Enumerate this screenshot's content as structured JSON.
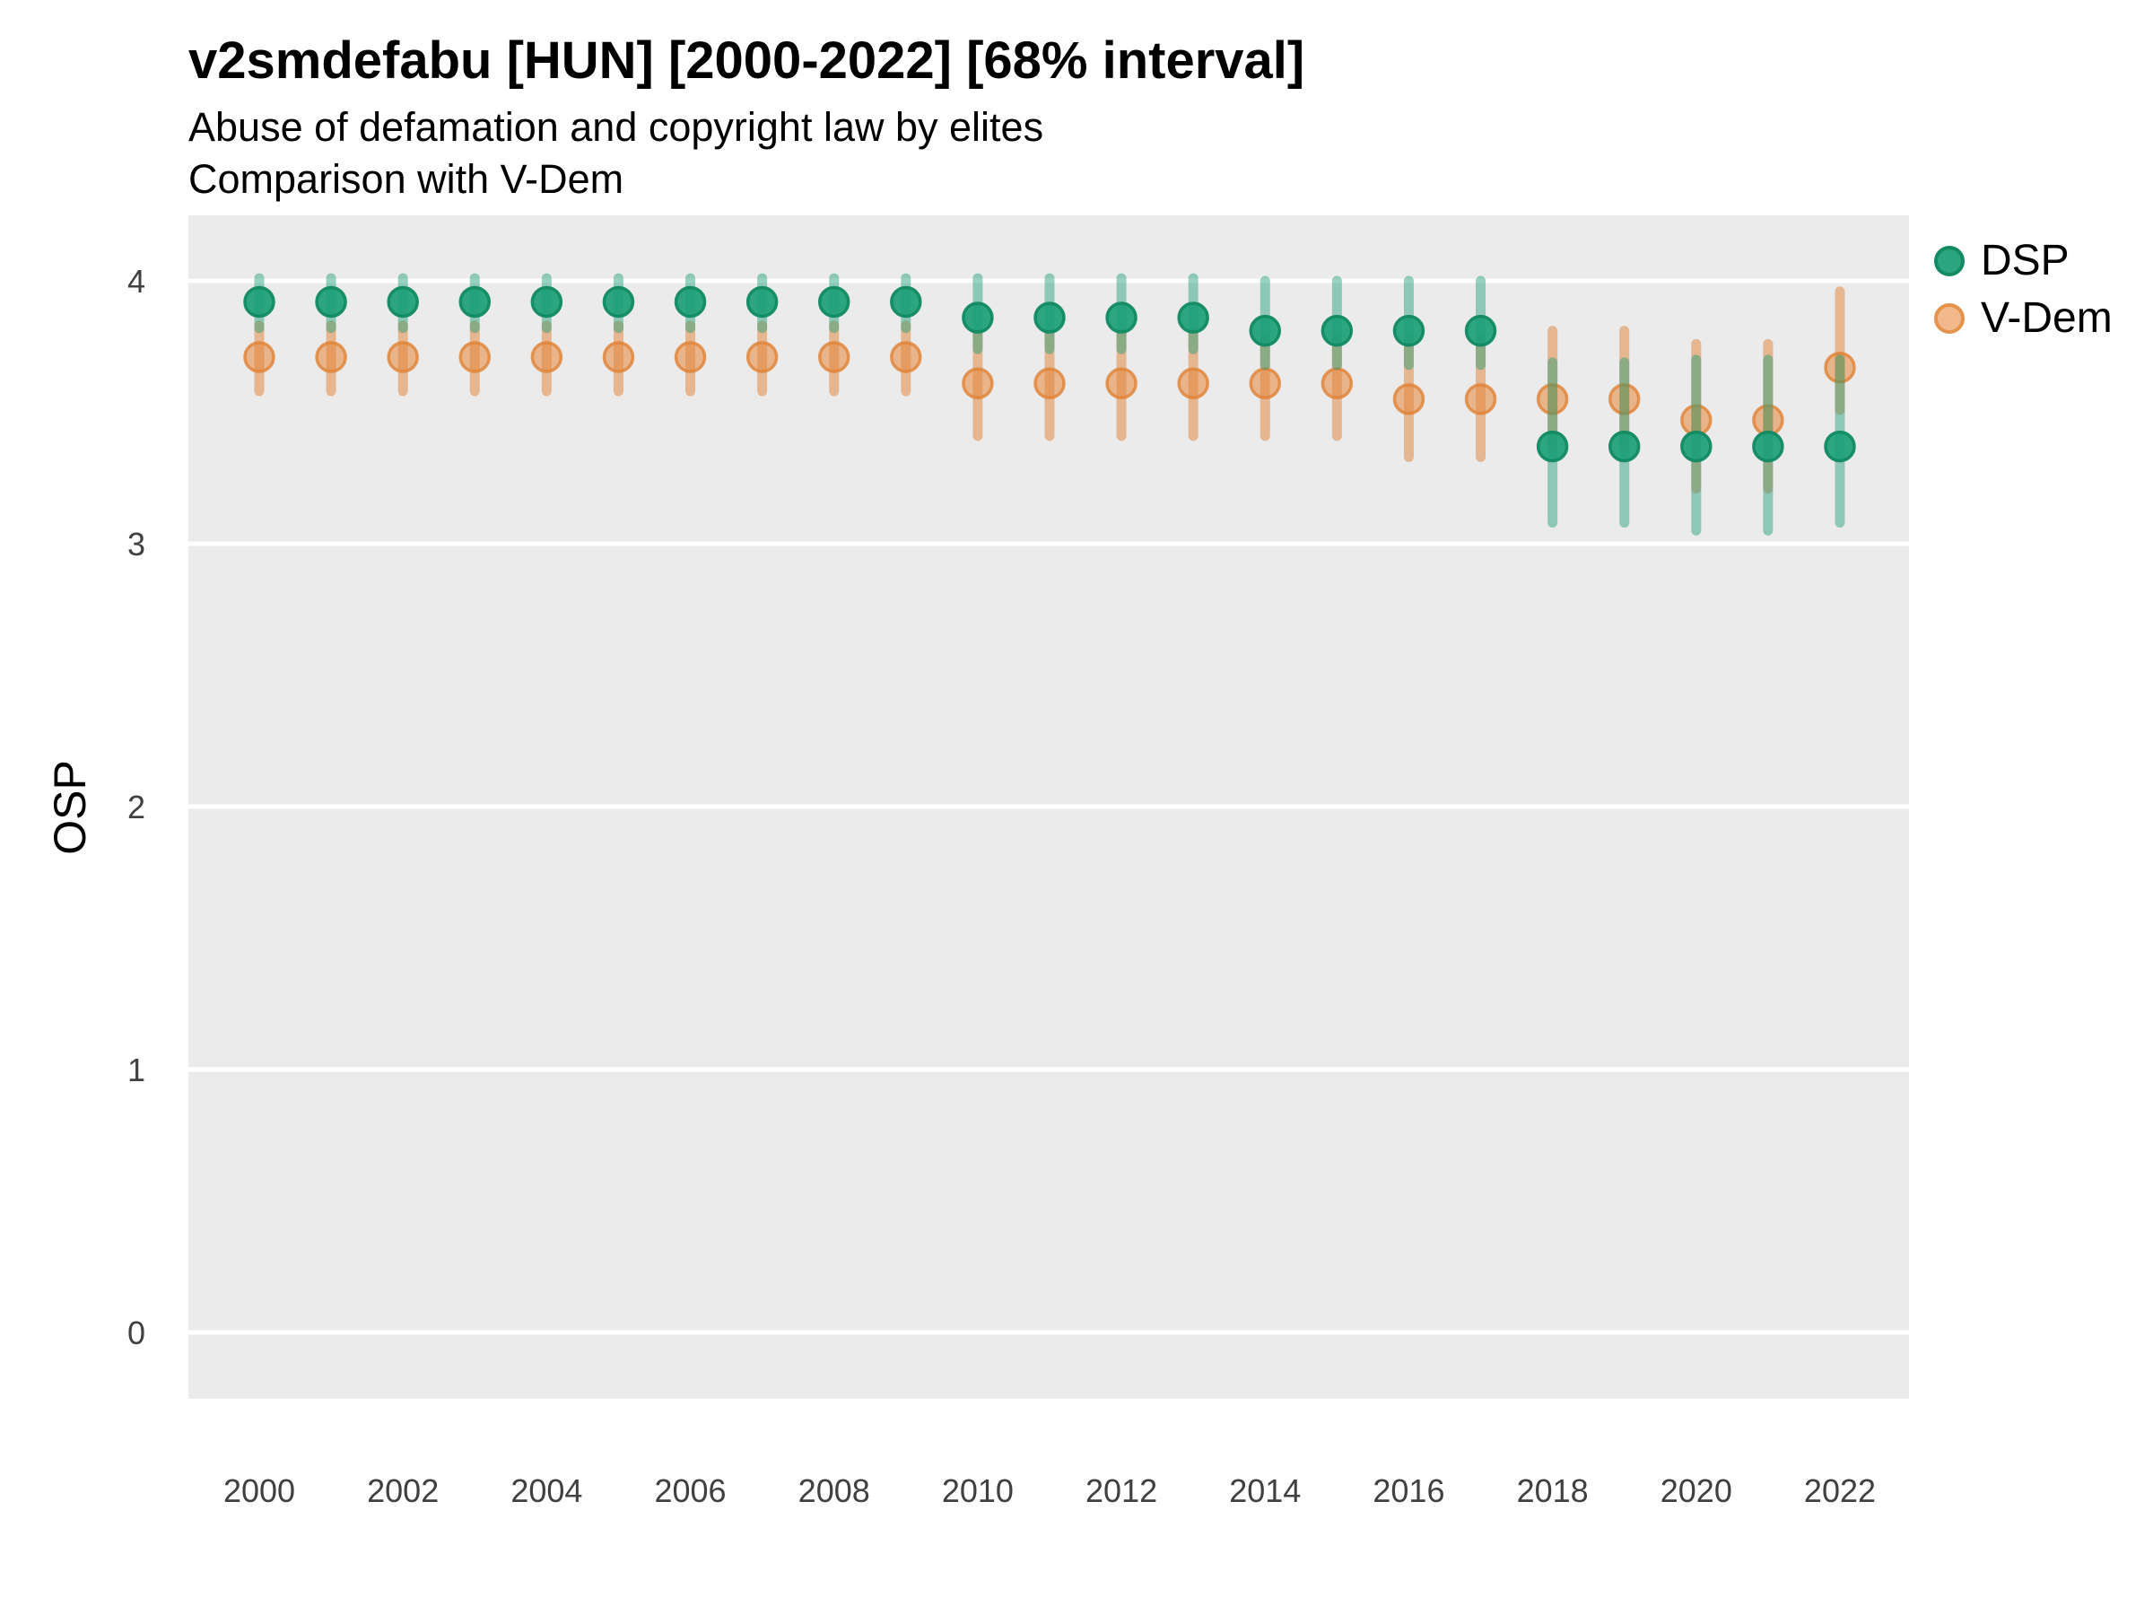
{
  "title": "v2smdefabu [HUN] [2000-2022] [68% interval]",
  "subtitle": "Abuse of defamation and copyright law by elites",
  "subtitle2": "Comparison with V-Dem",
  "y_axis": {
    "title": "OSP",
    "tick_labels": [
      "0",
      "1",
      "2",
      "3",
      "4"
    ],
    "tick_values": [
      0,
      1,
      2,
      3,
      4
    ]
  },
  "x_axis": {
    "tick_labels": [
      "2000",
      "2002",
      "2004",
      "2006",
      "2008",
      "2010",
      "2012",
      "2014",
      "2016",
      "2018",
      "2020",
      "2022"
    ],
    "tick_values": [
      2000,
      2002,
      2004,
      2006,
      2008,
      2010,
      2012,
      2014,
      2016,
      2018,
      2020,
      2022
    ]
  },
  "legend": {
    "items": [
      {
        "label": "DSP",
        "color": "#1B9E77"
      },
      {
        "label": "V-Dem",
        "color": "#E8873B"
      }
    ]
  },
  "colors": {
    "panel_background": "#EBEBEB",
    "gridline": "#FFFFFF",
    "tick_text": "#404040",
    "dsp_fill": "#1B9E77",
    "dsp_stroke": "#128A62",
    "dsp_line": "#1B9E77",
    "vdem_fill": "#E8873B",
    "vdem_stroke": "#E08234",
    "vdem_line": "#E08234"
  },
  "chart_data": {
    "type": "pointrange-scatter",
    "title": "v2smdefabu [HUN] [2000-2022] [68% interval]",
    "subtitle": "Abuse of defamation and copyright law by elites",
    "caption": "Comparison with V-Dem",
    "xlabel": "",
    "ylabel": "OSP",
    "ylim": [
      0,
      4
    ],
    "interval": "68%",
    "grid": "major-horizontal",
    "legend_position": "right-top",
    "x": [
      2000,
      2001,
      2002,
      2003,
      2004,
      2005,
      2006,
      2007,
      2008,
      2009,
      2010,
      2011,
      2012,
      2013,
      2014,
      2015,
      2016,
      2017,
      2018,
      2019,
      2020,
      2021,
      2022
    ],
    "series": [
      {
        "name": "V-Dem",
        "estimate": [
          3.71,
          3.71,
          3.71,
          3.71,
          3.71,
          3.71,
          3.71,
          3.71,
          3.71,
          3.71,
          3.61,
          3.61,
          3.61,
          3.61,
          3.61,
          3.61,
          3.55,
          3.55,
          3.55,
          3.55,
          3.47,
          3.47,
          3.67
        ],
        "lower": [
          3.58,
          3.58,
          3.58,
          3.58,
          3.58,
          3.58,
          3.58,
          3.58,
          3.58,
          3.58,
          3.41,
          3.41,
          3.41,
          3.41,
          3.41,
          3.41,
          3.33,
          3.33,
          3.37,
          3.37,
          3.21,
          3.21,
          3.51
        ],
        "upper": [
          3.83,
          3.83,
          3.83,
          3.83,
          3.83,
          3.83,
          3.83,
          3.83,
          3.83,
          3.83,
          3.8,
          3.8,
          3.8,
          3.8,
          3.78,
          3.78,
          3.78,
          3.78,
          3.81,
          3.81,
          3.76,
          3.76,
          3.96
        ]
      },
      {
        "name": "DSP",
        "estimate": [
          3.92,
          3.92,
          3.92,
          3.92,
          3.92,
          3.92,
          3.92,
          3.92,
          3.92,
          3.92,
          3.86,
          3.86,
          3.86,
          3.86,
          3.81,
          3.81,
          3.81,
          3.81,
          3.37,
          3.37,
          3.37,
          3.37,
          3.37
        ],
        "lower": [
          3.82,
          3.82,
          3.82,
          3.82,
          3.82,
          3.82,
          3.82,
          3.82,
          3.82,
          3.82,
          3.74,
          3.74,
          3.74,
          3.74,
          3.68,
          3.68,
          3.68,
          3.68,
          3.08,
          3.08,
          3.05,
          3.05,
          3.08
        ],
        "upper": [
          4.01,
          4.01,
          4.01,
          4.01,
          4.01,
          4.01,
          4.01,
          4.01,
          4.01,
          4.01,
          4.01,
          4.01,
          4.01,
          4.01,
          4.0,
          4.0,
          4.0,
          4.0,
          3.69,
          3.69,
          3.7,
          3.7,
          3.7
        ]
      }
    ]
  }
}
